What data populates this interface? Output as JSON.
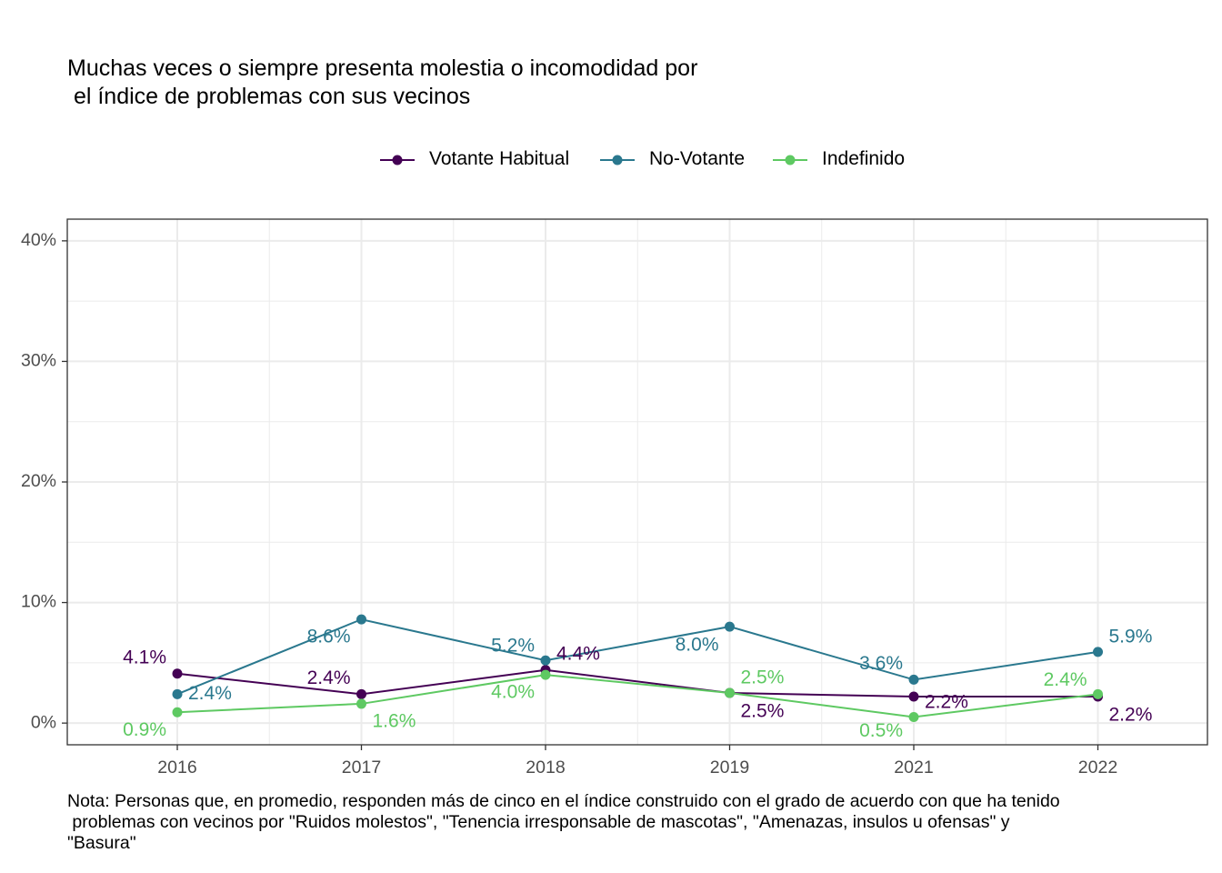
{
  "chart_data": {
    "type": "line",
    "title_lines": [
      "Muchas veces o siempre presenta molestia o incomodidad por",
      " el índice de problemas con sus vecinos"
    ],
    "note_lines": [
      "Nota: Personas que, en promedio, responden más de cinco en el índice construido con el grado de acuerdo con que ha tenido",
      " problemas con vecinos por \"Ruidos molestos\", \"Tenencia irresponsable de mascotas\", \"Amenazas, insulos u ofensas\" y",
      "\"Basura\""
    ],
    "categories": [
      "2016",
      "2017",
      "2018",
      "2019",
      "2021",
      "2022"
    ],
    "y_ticks": [
      0,
      10,
      20,
      30,
      40
    ],
    "y_tick_labels": [
      "0%",
      "10%",
      "20%",
      "30%",
      "40%"
    ],
    "ylim": [
      -1.8,
      41.8
    ],
    "grid": true,
    "legend_position": "top",
    "series": [
      {
        "name": "Votante Habitual",
        "color": "#440154",
        "values": [
          4.1,
          2.4,
          4.4,
          2.5,
          2.2,
          2.2
        ],
        "labels": [
          "4.1%",
          "2.4%",
          "4.4%",
          "2.5%",
          "2.2%",
          "2.2%"
        ]
      },
      {
        "name": "No-Votante",
        "color": "#2a788e",
        "values": [
          2.4,
          8.6,
          5.2,
          8.0,
          3.6,
          5.9
        ],
        "labels": [
          "2.4%",
          "8.6%",
          "5.2%",
          "8.0%",
          "3.6%",
          "5.9%"
        ]
      },
      {
        "name": "Indefinido",
        "color": "#5ec962",
        "values": [
          0.9,
          1.6,
          4.0,
          2.5,
          0.5,
          2.4
        ],
        "labels": [
          "0.9%",
          "1.6%",
          "4.0%",
          "2.5%",
          "0.5%",
          "2.4%"
        ]
      }
    ]
  }
}
